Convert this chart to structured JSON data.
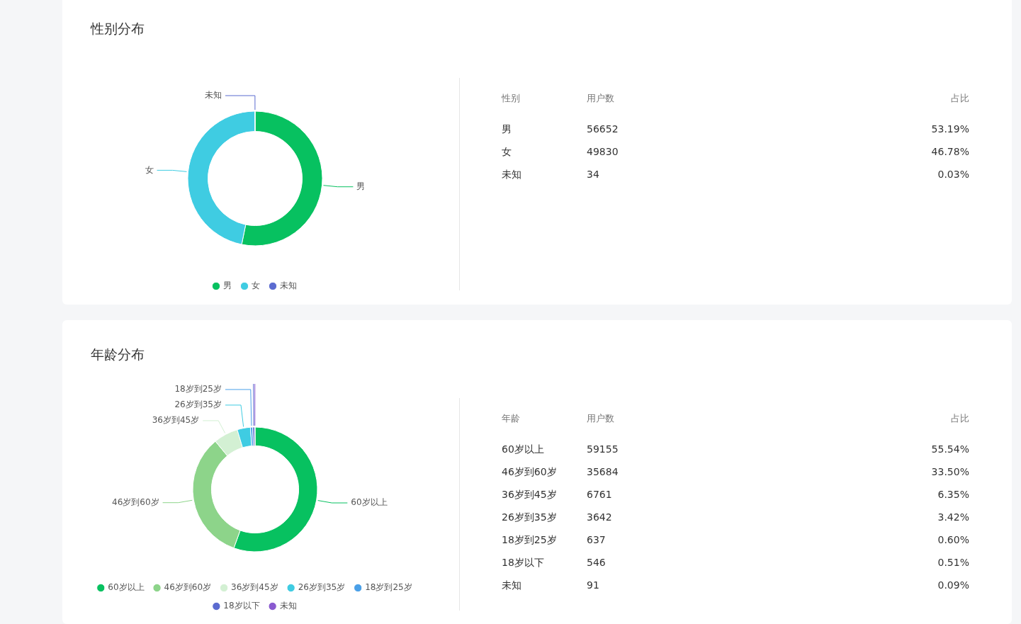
{
  "chart_data": [
    {
      "type": "donut",
      "title": "性别分布",
      "categories": [
        "男",
        "女",
        "未知"
      ],
      "values": [
        53.19,
        46.78,
        0.03
      ],
      "colors": [
        "#07c160",
        "#3fcce2",
        "#5b6bd0"
      ],
      "annotations": [
        "性别",
        "用户数",
        "占比",
        "56652",
        "49830",
        "34",
        "53.19%",
        "46.78%",
        "0.03%"
      ],
      "legend": "bottom"
    },
    {
      "type": "donut",
      "title": "年龄分布",
      "categories": [
        "60岁以上",
        "46岁到60岁",
        "36岁到45岁",
        "26岁到35岁",
        "18岁到25岁",
        "18岁以下",
        "未知"
      ],
      "values": [
        55.54,
        33.5,
        6.35,
        3.42,
        0.6,
        0.51,
        0.09
      ],
      "colors": [
        "#07c160",
        "#8dd48a",
        "#d3f0d3",
        "#3fcce2",
        "#4aa0e8",
        "#5b6bd0",
        "#8a5ad0"
      ],
      "annotations": [
        "年龄",
        "用户数",
        "占比",
        "59155",
        "35684",
        "6761",
        "3642",
        "637",
        "546",
        "91",
        "55.54%",
        "33.50%",
        "6.35%",
        "3.42%",
        "0.60%",
        "0.51%",
        "0.09%"
      ],
      "legend": "bottom"
    }
  ]
}
